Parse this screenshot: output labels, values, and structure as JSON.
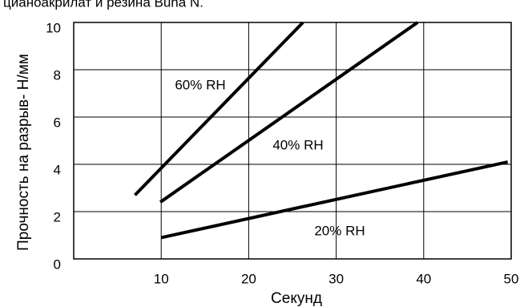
{
  "chart_data": {
    "type": "line",
    "title": "цианоакрилат и резина Buna N.",
    "x_label": "Секунд",
    "y_label": "Прочность на разрыв- Н/мм",
    "xlim": [
      0,
      50
    ],
    "xticks": [
      10,
      20,
      30,
      40,
      50
    ],
    "ylim": [
      0,
      10
    ],
    "yticks": [
      0,
      2,
      4,
      6,
      8,
      10
    ],
    "grid": true,
    "series": [
      {
        "name": "60% RH",
        "color": "#000000",
        "x": [
          7.0,
          26.2
        ],
        "values": [
          2.7,
          10.0
        ]
      },
      {
        "name": "40% RH",
        "color": "#000000",
        "x": [
          9.9,
          39.3
        ],
        "values": [
          2.4,
          10.0
        ]
      },
      {
        "name": "20% RH",
        "color": "#000000",
        "x": [
          10.0,
          49.6
        ],
        "values": [
          0.9,
          4.1
        ]
      }
    ]
  }
}
